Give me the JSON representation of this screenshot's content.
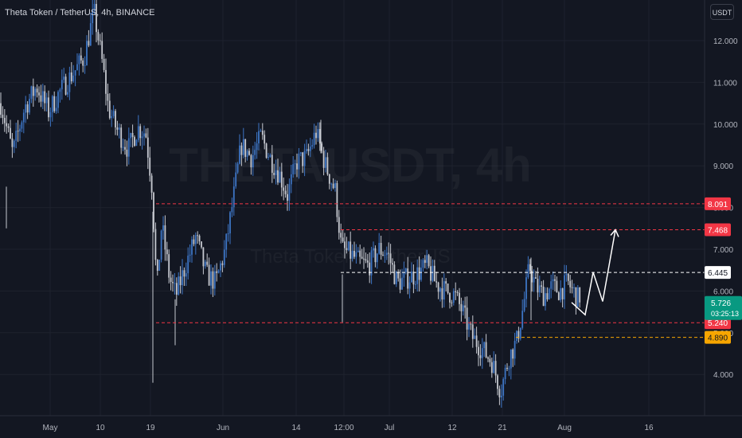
{
  "header": {
    "symbol": "Theta Token / TetherUS, 4h, BINANCE",
    "currency": "USDT"
  },
  "watermark": {
    "line1": "THETAUSDT, 4h",
    "line2": "Theta Token / TetherUS"
  },
  "colors": {
    "background": "#131722",
    "grid": "#1e222d",
    "axis_text": "#b2b5be",
    "candle_up": "#3d75c5",
    "candle_down": "#c6c9d0",
    "resistance": "#f23645",
    "pivot": "#ffffff",
    "support": "#f7a600",
    "current": "#089981"
  },
  "chart_data": {
    "type": "candlestick",
    "y_axis": {
      "min": 3.3,
      "max": 13.0,
      "ticks": [
        "12.000",
        "11.000",
        "10.000",
        "9.000",
        "8.000",
        "7.000",
        "6.000",
        "5.000",
        "4.000"
      ]
    },
    "x_axis": {
      "ticks": [
        "May",
        "10",
        "19",
        "Jun",
        "14",
        "12:00",
        "Jul",
        "12",
        "21",
        "Aug",
        "16"
      ]
    },
    "path": [
      [
        0,
        10.5
      ],
      [
        15,
        9.3
      ],
      [
        30,
        10.4
      ],
      [
        45,
        10.9
      ],
      [
        60,
        10.3
      ],
      [
        75,
        10.8
      ],
      [
        90,
        11.2
      ],
      [
        105,
        11.6
      ],
      [
        117,
        12.7
      ],
      [
        128,
        11.4
      ],
      [
        135,
        10.4
      ],
      [
        145,
        9.9
      ],
      [
        160,
        9.4
      ],
      [
        172,
        9.9
      ],
      [
        182,
        9.8
      ],
      [
        190,
        8.5
      ],
      [
        196,
        6.0
      ],
      [
        202,
        7.6
      ],
      [
        212,
        6.3
      ],
      [
        220,
        5.9
      ],
      [
        232,
        6.6
      ],
      [
        245,
        7.3
      ],
      [
        258,
        6.4
      ],
      [
        270,
        6.2
      ],
      [
        282,
        7.0
      ],
      [
        292,
        8.2
      ],
      [
        302,
        9.5
      ],
      [
        315,
        9.2
      ],
      [
        327,
        9.7
      ],
      [
        338,
        9.2
      ],
      [
        350,
        8.8
      ],
      [
        360,
        8.3
      ],
      [
        372,
        9.1
      ],
      [
        384,
        9.2
      ],
      [
        396,
        9.8
      ],
      [
        408,
        9.0
      ],
      [
        420,
        8.4
      ],
      [
        428,
        7.0
      ],
      [
        438,
        6.9
      ],
      [
        450,
        6.7
      ],
      [
        462,
        6.6
      ],
      [
        475,
        7.0
      ],
      [
        486,
        6.9
      ],
      [
        498,
        6.2
      ],
      [
        510,
        6.3
      ],
      [
        522,
        6.4
      ],
      [
        535,
        6.6
      ],
      [
        546,
        6.2
      ],
      [
        558,
        6.0
      ],
      [
        570,
        5.9
      ],
      [
        580,
        5.5
      ],
      [
        592,
        4.9
      ],
      [
        605,
        4.6
      ],
      [
        617,
        4.3
      ],
      [
        628,
        3.6
      ],
      [
        638,
        4.4
      ],
      [
        648,
        4.8
      ],
      [
        656,
        5.6
      ],
      [
        664,
        6.6
      ],
      [
        672,
        6.1
      ],
      [
        682,
        5.9
      ],
      [
        692,
        6.1
      ],
      [
        702,
        6.0
      ],
      [
        712,
        6.2
      ],
      [
        722,
        5.9
      ],
      [
        728,
        5.73
      ]
    ],
    "levels": [
      {
        "value": 8.091,
        "label": "8.091",
        "style": "resistance"
      },
      {
        "value": 7.468,
        "label": "7.468",
        "style": "resistance"
      },
      {
        "value": 6.445,
        "label": "6.445",
        "style": "pivot"
      },
      {
        "value": 5.24,
        "label": "5.240",
        "style": "resistance"
      },
      {
        "value": 4.89,
        "label": "4.890",
        "style": "support"
      }
    ],
    "current": {
      "value": 5.726,
      "label": "5.726",
      "countdown": "03:25:13"
    },
    "projection": [
      [
        5.726
      ],
      [
        5.43
      ],
      [
        6.45
      ],
      [
        5.75
      ],
      [
        7.468
      ]
    ]
  }
}
